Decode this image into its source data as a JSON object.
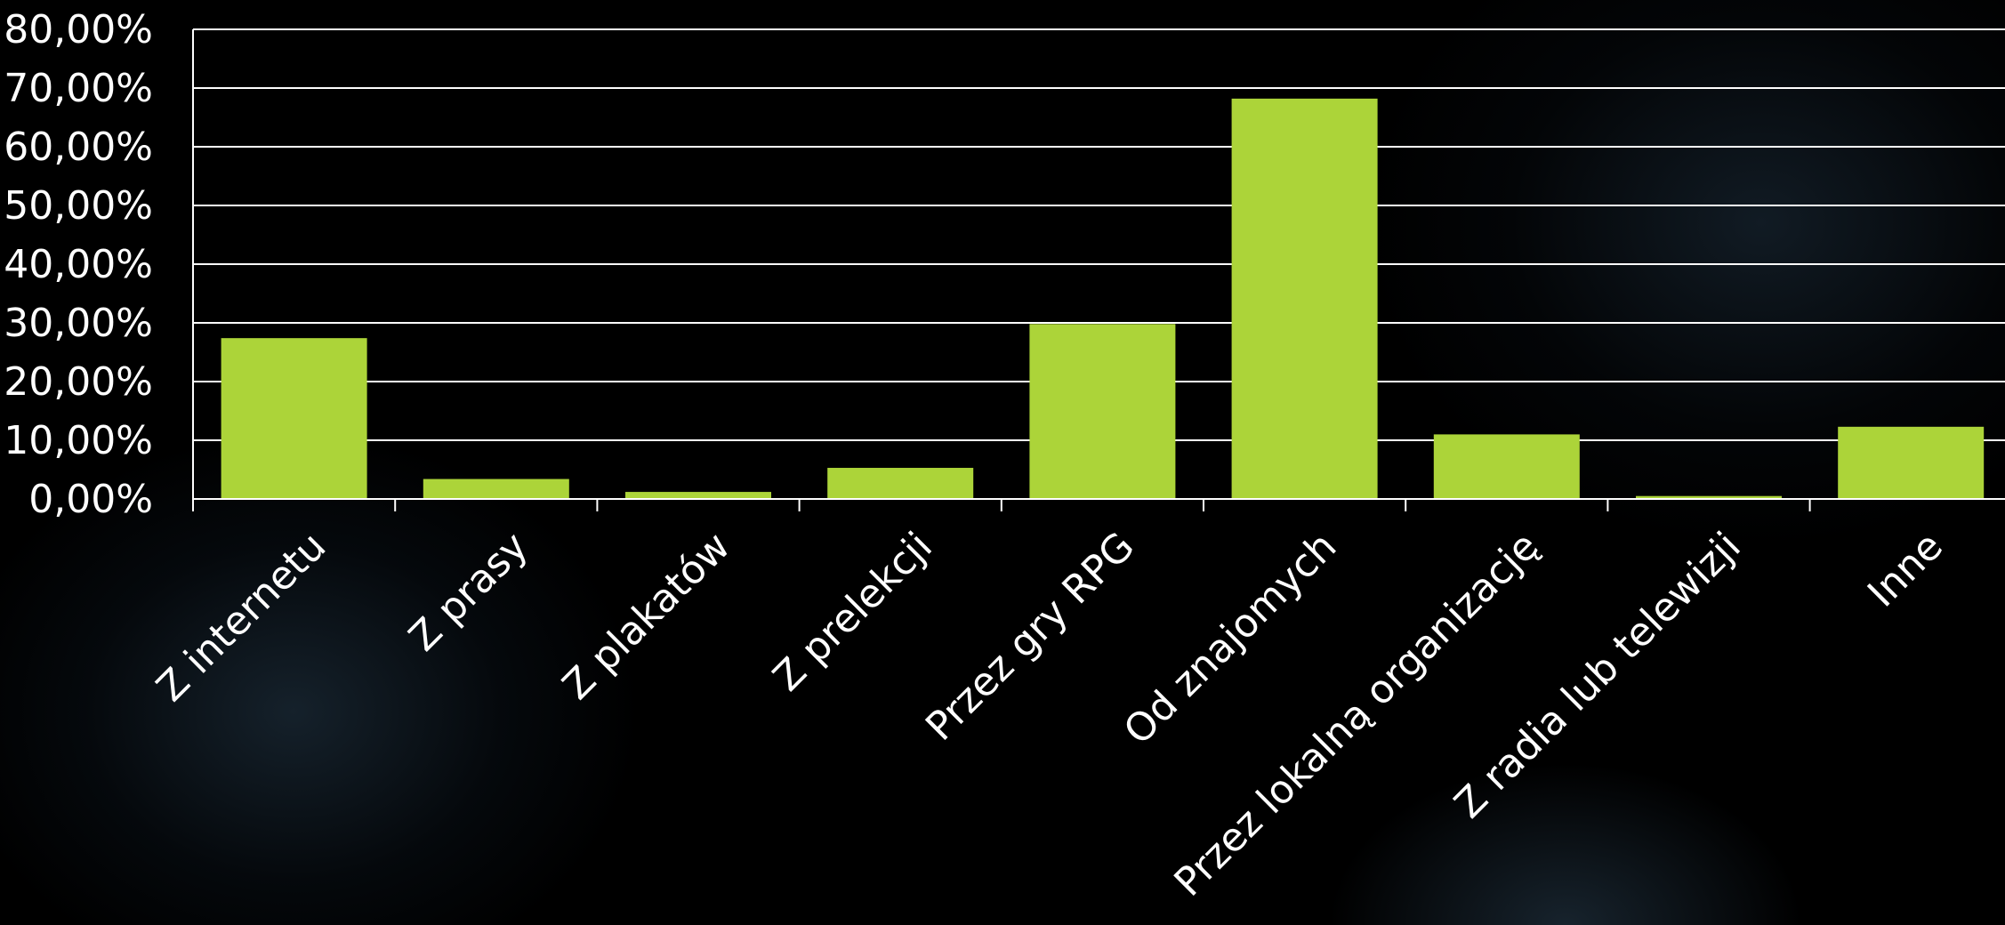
{
  "chart_data": {
    "type": "bar",
    "title": "",
    "xlabel": "",
    "ylabel": "",
    "categories": [
      "Z internetu",
      "Z prasy",
      "Z plakatów",
      "Z prelekcji",
      "Przez gry RPG",
      "Od znajomych",
      "Przez lokalną organizację",
      "Z radia lub telewizji",
      "Inne"
    ],
    "values": [
      27.4,
      3.4,
      1.2,
      5.3,
      29.8,
      68.2,
      11.0,
      0.5,
      12.3
    ],
    "ylim": [
      0,
      80
    ],
    "y_ticks": [
      0,
      10,
      20,
      30,
      40,
      50,
      60,
      70,
      80
    ],
    "y_tick_labels": [
      "0,00%",
      "10,00%",
      "20,00%",
      "30,00%",
      "40,00%",
      "50,00%",
      "60,00%",
      "70,00%",
      "80,00%"
    ],
    "grid": true,
    "legend": "none",
    "colors": {
      "bar": "#acd439",
      "grid": "#ffffff",
      "axis": "#ffffff",
      "text": "#ffffff",
      "background": "#000000"
    }
  }
}
